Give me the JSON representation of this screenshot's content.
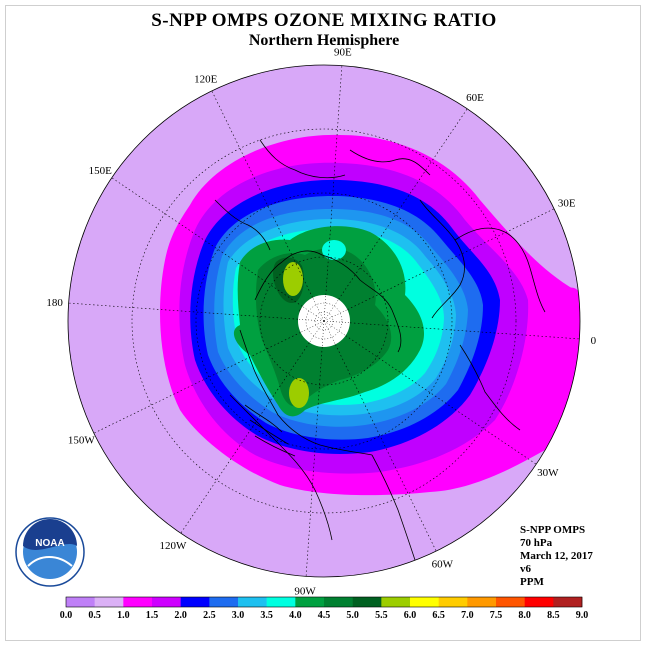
{
  "title": "S-NPP OMPS OZONE MIXING RATIO",
  "subtitle": "Northern Hemisphere",
  "longitude_labels": [
    {
      "id": "90e",
      "text": "90E",
      "lon": 90
    },
    {
      "id": "60e",
      "text": "60E",
      "lon": 60
    },
    {
      "id": "30e",
      "text": "30E",
      "lon": 30
    },
    {
      "id": "0",
      "text": "0",
      "lon": 0
    },
    {
      "id": "30w",
      "text": "30W",
      "lon": -30
    },
    {
      "id": "60w",
      "text": "60W",
      "lon": -60
    },
    {
      "id": "90w",
      "text": "90W",
      "lon": -90
    },
    {
      "id": "120w",
      "text": "120W",
      "lon": -120
    },
    {
      "id": "150w",
      "text": "150W",
      "lon": -150
    },
    {
      "id": "180",
      "text": "180",
      "lon": 180
    },
    {
      "id": "150e",
      "text": "150E",
      "lon": 150
    },
    {
      "id": "120e",
      "text": "120E",
      "lon": 120
    }
  ],
  "info": {
    "instrument": "S-NPP OMPS",
    "pressure": "70 hPa",
    "date": "March 12, 2017",
    "version": "v6",
    "units": "PPM"
  },
  "logo": {
    "text": "NOAA",
    "ring_text": "NATIONAL OCEANIC AND ATMOSPHERIC ADMINISTRATION · U.S. DEPARTMENT OF COMMERCE"
  },
  "colorbar": {
    "ticks": [
      "0.0",
      "0.5",
      "1.0",
      "1.5",
      "2.0",
      "2.5",
      "3.0",
      "3.5",
      "4.0",
      "4.5",
      "5.0",
      "5.5",
      "6.0",
      "6.5",
      "7.0",
      "7.5",
      "8.0",
      "8.5",
      "9.0"
    ],
    "colors": [
      "#bf80f7",
      "#dbb1f6",
      "#ff00ff",
      "#ce00ff",
      "#0000ff",
      "#1e6cf0",
      "#1e96f0",
      "#1ec0f0",
      "#00ffe0",
      "#00a040",
      "#008030",
      "#006020",
      "#9ccd00",
      "#ccff00",
      "#ffff00",
      "#ffcc00",
      "#ff9900",
      "#ff5500",
      "#ff0000",
      "#b02020",
      "#8b5a2b"
    ]
  }
}
